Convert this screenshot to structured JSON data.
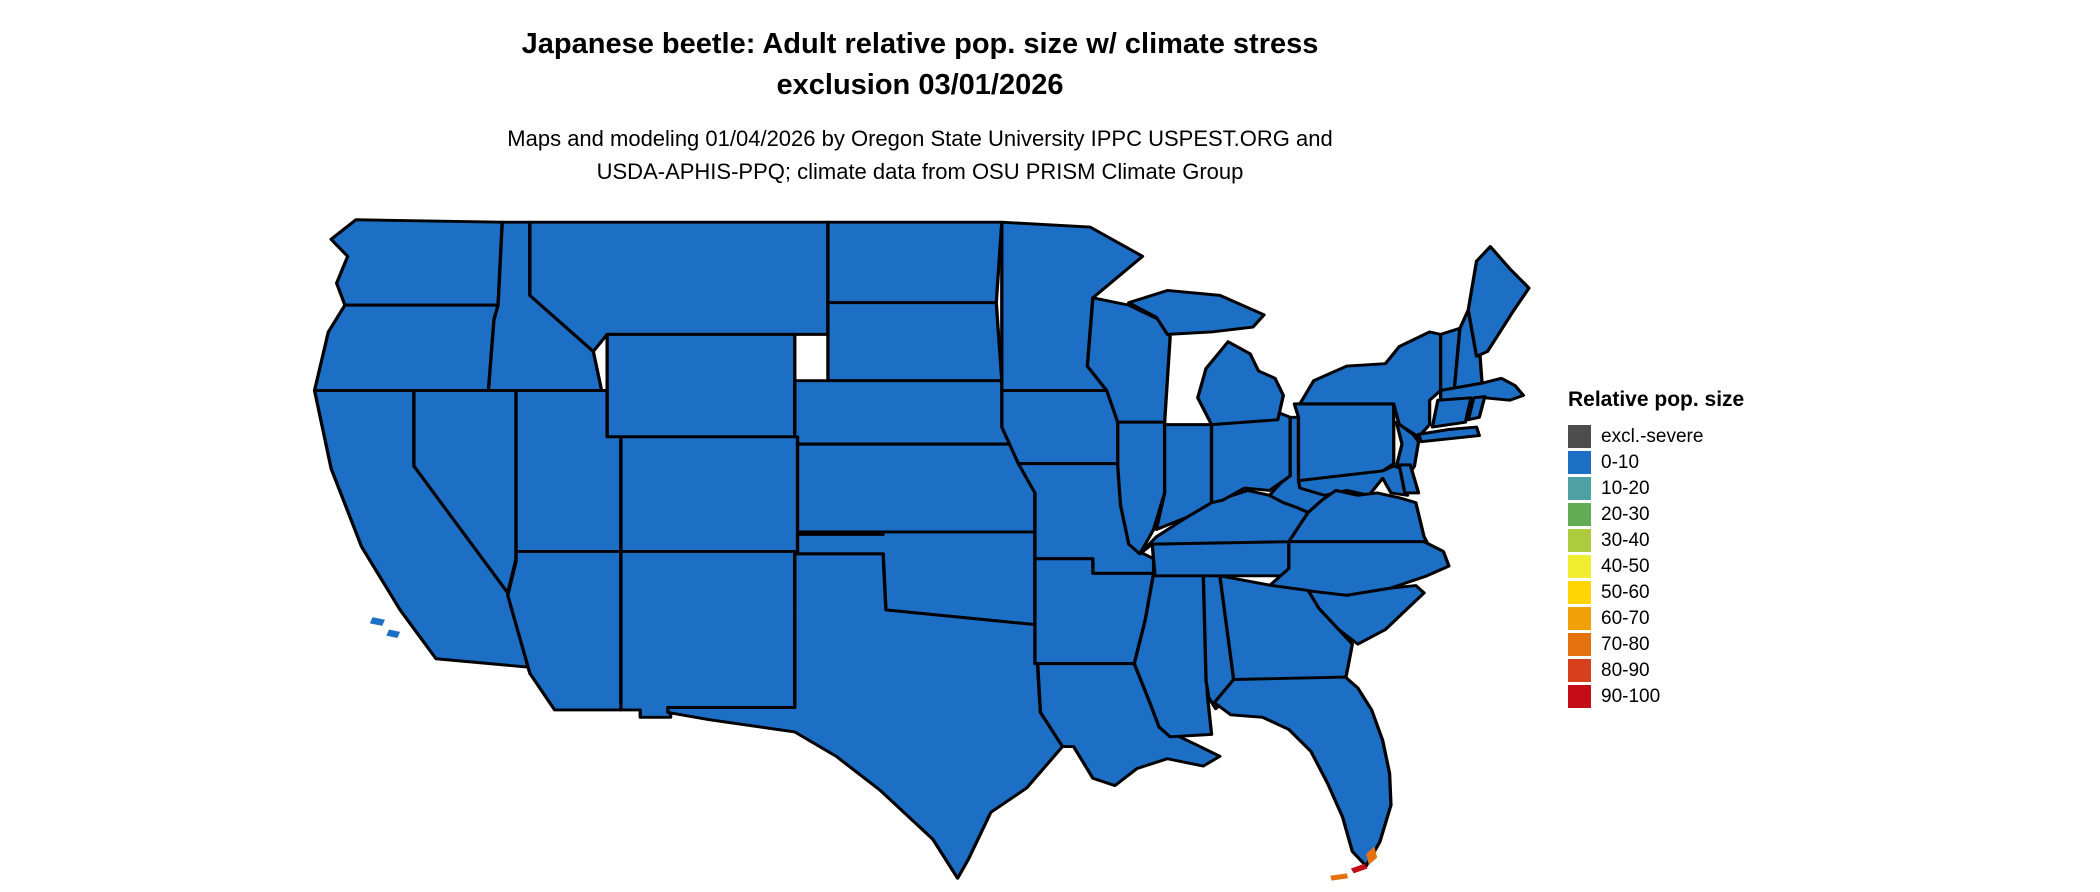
{
  "title": {
    "line1": "Japanese beetle: Adult relative pop. size w/ climate stress",
    "line2": "exclusion 03/01/2026"
  },
  "subtitle": {
    "line1": "Maps and modeling 01/04/2026 by Oregon State University IPPC USPEST.ORG and",
    "line2": "USDA-APHIS-PPQ; climate data from OSU PRISM Climate Group"
  },
  "legend": {
    "title": "Relative pop. size",
    "items": [
      {
        "label": "excl.-severe",
        "color": "#4D4D4D"
      },
      {
        "label": "0-10",
        "color": "#1C6FC4"
      },
      {
        "label": "10-20",
        "color": "#4FA0A2"
      },
      {
        "label": "20-30",
        "color": "#62AC56"
      },
      {
        "label": "30-40",
        "color": "#AECB3D"
      },
      {
        "label": "40-50",
        "color": "#F0EE2E"
      },
      {
        "label": "50-60",
        "color": "#FFD500"
      },
      {
        "label": "60-70",
        "color": "#F2A007"
      },
      {
        "label": "70-80",
        "color": "#E5710E"
      },
      {
        "label": "80-90",
        "color": "#D6411B"
      },
      {
        "label": "90-100",
        "color": "#C50D15"
      }
    ]
  },
  "map": {
    "fill_color": "#1C6FC4",
    "stroke_color": "#000000",
    "accent_orange": "#E5710E",
    "accent_red": "#C50D15"
  }
}
